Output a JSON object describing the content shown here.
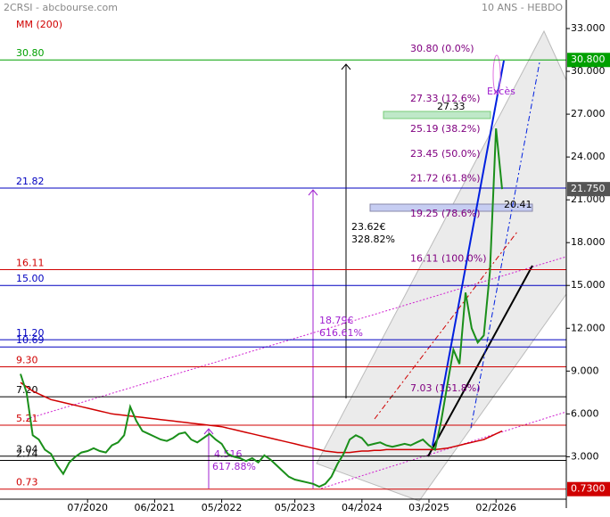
{
  "chart_data": {
    "type": "line",
    "title": "2CRSI - abcbourse.com",
    "subtitle": "10 ANS - HEBDO",
    "x": [
      "08/2019",
      "09/2019",
      "10/2019",
      "11/2019",
      "12/2019",
      "01/2020",
      "02/2020",
      "03/2020",
      "04/2020",
      "05/2020",
      "06/2020",
      "07/2020",
      "08/2020",
      "09/2020",
      "10/2020",
      "11/2020",
      "12/2020",
      "01/2021",
      "02/2021",
      "03/2021",
      "04/2021",
      "05/2021",
      "06/2021",
      "07/2021",
      "08/2021",
      "09/2021",
      "10/2021",
      "11/2021",
      "12/2021",
      "01/2022",
      "02/2022",
      "03/2022",
      "04/2022",
      "05/2022",
      "06/2022",
      "07/2022",
      "08/2022",
      "09/2022",
      "10/2022",
      "11/2022",
      "12/2022",
      "01/2023",
      "02/2023",
      "03/2023",
      "04/2023",
      "05/2023",
      "06/2023",
      "07/2023",
      "08/2023",
      "09/2023",
      "10/2023",
      "11/2023",
      "12/2023",
      "01/2024",
      "02/2024",
      "03/2024",
      "04/2024",
      "05/2024",
      "06/2024",
      "07/2024",
      "08/2024",
      "09/2024",
      "10/2024",
      "11/2024",
      "12/2024",
      "01/2025",
      "02/2025",
      "03/2025",
      "04/2025",
      "05/2025",
      "06/2025",
      "07/2025",
      "08/2025",
      "09/2025",
      "10/2025",
      "11/2025",
      "12/2025",
      "01/2026",
      "02/2026",
      "03/2026"
    ],
    "xticks": [
      "07/2020",
      "06/2021",
      "05/2022",
      "05/2023",
      "04/2024",
      "03/2025",
      "02/2026"
    ],
    "series": [
      {
        "name": "Cours",
        "color": "#1a8f1a",
        "values": [
          8.8,
          7.5,
          4.5,
          4.2,
          3.5,
          3.2,
          2.4,
          1.8,
          2.6,
          3.0,
          3.3,
          3.4,
          3.6,
          3.4,
          3.3,
          3.8,
          4.0,
          4.5,
          6.5,
          5.5,
          4.8,
          4.6,
          4.4,
          4.2,
          4.1,
          4.3,
          4.6,
          4.7,
          4.2,
          4.0,
          4.3,
          4.6,
          4.2,
          3.9,
          3.2,
          3.0,
          2.9,
          2.7,
          2.9,
          2.6,
          3.1,
          2.8,
          2.4,
          2.0,
          1.6,
          1.4,
          1.3,
          1.2,
          1.1,
          0.9,
          1.1,
          1.6,
          2.5,
          3.2,
          4.2,
          4.5,
          4.3,
          3.8,
          3.9,
          4.0,
          3.8,
          3.7,
          3.8,
          3.9,
          3.8,
          4.0,
          4.2,
          3.8,
          3.5,
          5.5,
          8.0,
          10.5,
          9.5,
          14.5,
          12.0,
          11.0,
          11.5,
          16.0,
          26.0,
          21.75
        ]
      },
      {
        "name": "MM (200)",
        "color": "#d00000",
        "values": [
          8.2,
          7.9,
          7.6,
          7.4,
          7.2,
          7.0,
          6.9,
          6.8,
          6.7,
          6.6,
          6.5,
          6.4,
          6.3,
          6.2,
          6.1,
          6.0,
          5.95,
          5.9,
          5.85,
          5.8,
          5.75,
          5.7,
          5.65,
          5.6,
          5.55,
          5.5,
          5.45,
          5.4,
          5.35,
          5.3,
          5.25,
          5.2,
          5.15,
          5.1,
          5.0,
          4.9,
          4.8,
          4.7,
          4.6,
          4.5,
          4.4,
          4.3,
          4.2,
          4.1,
          4.0,
          3.9,
          3.8,
          3.7,
          3.6,
          3.5,
          3.4,
          3.35,
          3.3,
          3.3,
          3.3,
          3.35,
          3.4,
          3.4,
          3.45,
          3.45,
          3.5,
          3.5,
          3.5,
          3.5,
          3.5,
          3.5,
          3.5,
          3.5,
          3.5,
          3.55,
          3.6,
          3.7,
          3.8,
          3.9,
          4.0,
          4.1,
          4.2,
          4.4,
          4.6,
          4.8
        ]
      }
    ],
    "ylim": [
      -0.6,
      35
    ],
    "yticks": [
      {
        "value": 3,
        "label": "3.000"
      },
      {
        "value": 6,
        "label": "6.000"
      },
      {
        "value": 9,
        "label": "9.000"
      },
      {
        "value": 12,
        "label": "12.000"
      },
      {
        "value": 15,
        "label": "15.000"
      },
      {
        "value": 18,
        "label": "18.000"
      },
      {
        "value": 21,
        "label": "21.000"
      },
      {
        "value": 24,
        "label": "24.000"
      },
      {
        "value": 27,
        "label": "27.000"
      },
      {
        "value": 30,
        "label": "30.000"
      },
      {
        "value": 33,
        "label": "33.000"
      }
    ],
    "levels": [
      {
        "value": 30.8,
        "label": "30.80",
        "color": "#00a000"
      },
      {
        "value": 21.82,
        "label": "21.82",
        "color": "#0000c0"
      },
      {
        "value": 16.11,
        "label": "16.11",
        "color": "#d00000"
      },
      {
        "value": 15,
        "label": "15.00",
        "color": "#0000c0"
      },
      {
        "value": 11.2,
        "label": "11.20",
        "color": "#0000c0"
      },
      {
        "value": 10.69,
        "label": "10.69",
        "color": "#0000c0"
      },
      {
        "value": 9.3,
        "label": "9.30",
        "color": "#d00000"
      },
      {
        "value": 7.2,
        "label": "7.20",
        "color": "#000000"
      },
      {
        "value": 5.21,
        "label": "5.21",
        "color": "#d00000"
      },
      {
        "value": 3.04,
        "label": "3.04",
        "color": "#000000"
      },
      {
        "value": 2.74,
        "label": "2.74",
        "color": "#000000"
      },
      {
        "value": 0.73,
        "label": "0.73",
        "color": "#d00000"
      }
    ],
    "fibonacci": [
      {
        "value": 30.8,
        "label": "30.80 (0.0%)"
      },
      {
        "value": 27.33,
        "label": "27.33 (12.6%)"
      },
      {
        "value": 25.19,
        "label": "25.19 (38.2%)"
      },
      {
        "value": 23.45,
        "label": "23.45 (50.0%)"
      },
      {
        "value": 21.72,
        "label": "21.72 (61.8%)"
      },
      {
        "value": 19.25,
        "label": "19.25 (78.6%)"
      },
      {
        "value": 16.11,
        "label": "16.11 (100.0%)"
      },
      {
        "value": 7.03,
        "label": "7.03 (161.8%)"
      }
    ],
    "price_tags": [
      {
        "value": 30.8,
        "label": "30.800",
        "color": "#00a000"
      },
      {
        "value": 21.75,
        "label": "21.750",
        "color": "#555555"
      },
      {
        "value": 0.73,
        "label": "0.7300",
        "color": "#d00000"
      }
    ],
    "annotations": {
      "gain_1_price": "23.62€",
      "gain_1_pct": "328.82%",
      "gain_2_price": "18.79€",
      "gain_2_pct": "616.61%",
      "gain_3_price": "4.516",
      "gain_3_pct": "617.88%",
      "excess": "Excès",
      "top_value": "27.33",
      "box_value": "20.41"
    }
  }
}
